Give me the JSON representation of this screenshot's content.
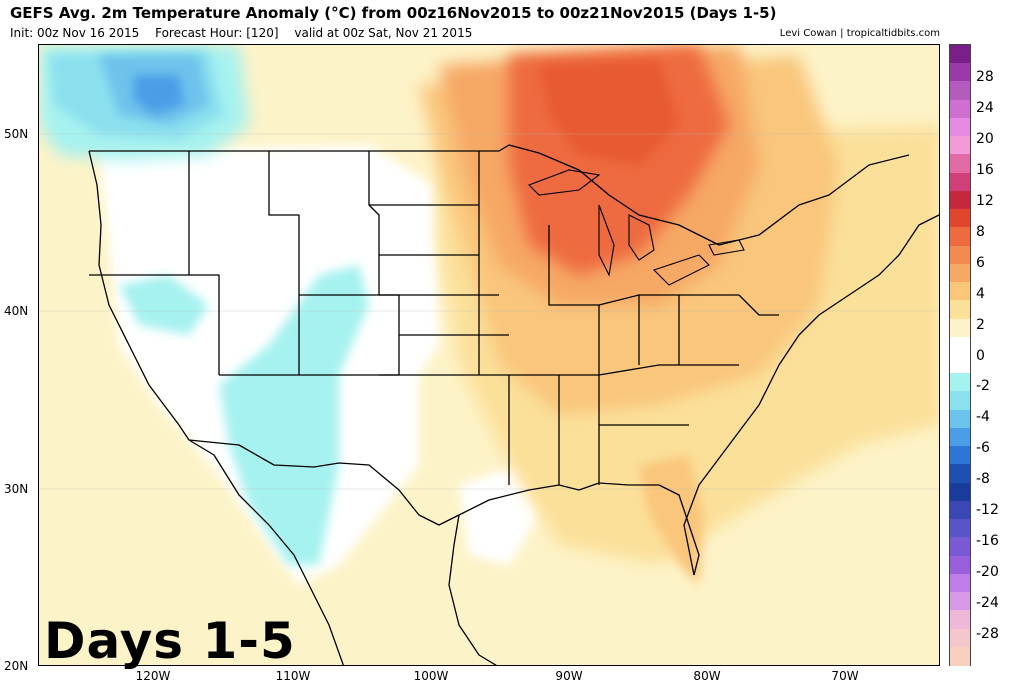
{
  "header": {
    "title": "GEFS Avg. 2m Temperature Anomaly (°C) from 00z16Nov2015 to 00z21Nov2015 (Days 1-5)",
    "init": "Init: 00z Nov 16 2015",
    "forecast_hour": "Forecast Hour: [120]",
    "valid": "valid at 00z Sat, Nov 21 2015",
    "credit": "Levi Cowan | tropicaltidbits.com"
  },
  "overlay_label": "Days 1-5",
  "axes": {
    "lat_labels": [
      "50N",
      "40N",
      "30N",
      "20N"
    ],
    "lon_labels": [
      "120W",
      "110W",
      "100W",
      "90W",
      "80W",
      "70W"
    ]
  },
  "colorbar": {
    "labels": [
      "28",
      "24",
      "20",
      "16",
      "12",
      "8",
      "6",
      "4",
      "2",
      "0",
      "-2",
      "-4",
      "-6",
      "-8",
      "-12",
      "-16",
      "-20",
      "-24",
      "-28"
    ],
    "colors": [
      "#7a1f8a",
      "#9a3aa8",
      "#b45cbd",
      "#cf6fcf",
      "#e58ae2",
      "#f49ad8",
      "#e36ba5",
      "#d0407a",
      "#c4283e",
      "#e0452e",
      "#ee6b3f",
      "#f38a4f",
      "#f6a865",
      "#f9c67c",
      "#fbe09a",
      "#fdf3c8",
      "#ffffff",
      "#ffffff",
      "#a6f2f0",
      "#8ce0ee",
      "#6ec3ec",
      "#4b9ee6",
      "#2f75d6",
      "#1f4fb0",
      "#193c9c",
      "#3a48b6",
      "#5b54c8",
      "#7a5ad4",
      "#9a60dc",
      "#c27ee8",
      "#d79ae6",
      "#f0b8d8",
      "#f5c6cc",
      "#f8d0bf"
    ]
  },
  "map_colors": {
    "ocean_base": "#fdf3c8",
    "neutral": "#ffffff",
    "warm1": "#fbe09a",
    "warm2": "#f9c67c",
    "warm3": "#f6a865",
    "warm4": "#ee6b3f",
    "warm5": "#e85a32",
    "cool1": "#a6f2f0",
    "cool2": "#8ce0ee",
    "cool3": "#6ec3ec",
    "cool4": "#4b9ee6",
    "cool5": "#2f75d6",
    "border": "#000000"
  }
}
